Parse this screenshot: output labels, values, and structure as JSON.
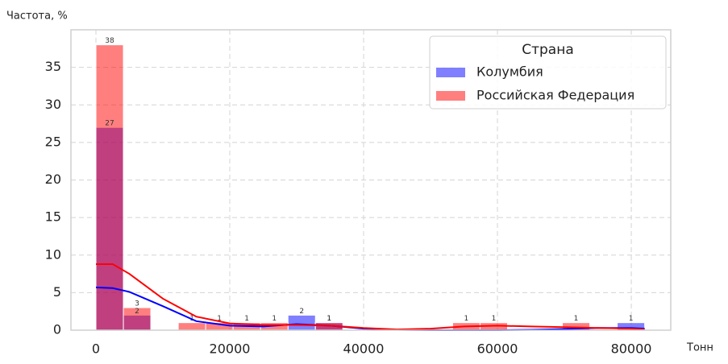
{
  "chart_data": {
    "type": "histogram",
    "ylabel": "Частота, %",
    "xlabel": "Тонн",
    "bins": [
      0,
      4100,
      8200,
      12300,
      16400,
      20500,
      24600,
      28700,
      32800,
      36900,
      41000,
      45100,
      49200,
      53300,
      57400,
      61500,
      65600,
      69700,
      73800,
      77900,
      82000
    ],
    "series": [
      {
        "name": "Колумбия",
        "color": "#0000ff",
        "values": [
          27,
          2,
          0,
          0,
          0,
          0,
          0,
          2,
          1,
          0,
          0,
          0,
          0,
          0,
          0,
          0,
          0,
          0,
          0,
          1
        ],
        "kde": [
          5.7,
          5.6,
          5.1,
          3.2,
          1.2,
          0.6,
          0.5,
          0.8,
          0.6,
          0.2,
          0.05,
          0,
          0,
          0,
          0.05,
          0.15,
          0.3,
          0.3,
          0.2
        ]
      },
      {
        "name": "Российская Федерация",
        "color": "#ff0000",
        "values": [
          38,
          3,
          0,
          1,
          1,
          1,
          1,
          0,
          1,
          0,
          0,
          0,
          0,
          1,
          1,
          0,
          0,
          1,
          0,
          0
        ],
        "kde": [
          8.8,
          8.8,
          7.5,
          4.2,
          1.8,
          0.9,
          0.7,
          0.7,
          0.6,
          0.3,
          0.1,
          0.2,
          0.5,
          0.6,
          0.5,
          0.4,
          0.3,
          0.2,
          0.1
        ]
      }
    ],
    "kde_x": [
      0,
      2500,
      5000,
      10000,
      15000,
      20000,
      25000,
      30000,
      35000,
      40000,
      45000,
      50000,
      55000,
      60000,
      65000,
      70000,
      75000,
      80000,
      82000
    ],
    "xlim": [
      -3735,
      85900
    ],
    "xticks": [
      0,
      20000,
      40000,
      60000,
      80000
    ],
    "ylim": [
      0,
      40
    ],
    "yticks": [
      0,
      5,
      10,
      15,
      20,
      25,
      30,
      35
    ],
    "grid": true,
    "legend_title": "Страна",
    "legend_position": "upper right"
  }
}
